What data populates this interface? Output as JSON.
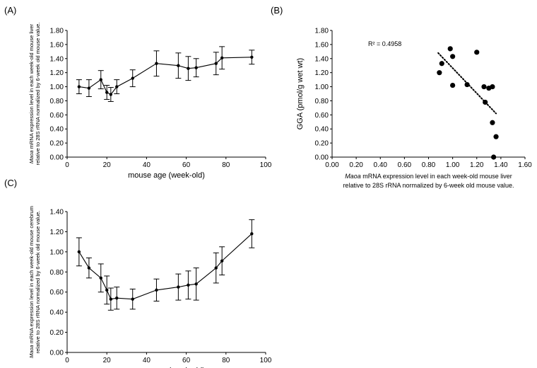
{
  "chart_data": [
    {
      "type": "line",
      "panel_label": "(A)",
      "xlabel": "mouse age (week-old)",
      "ylabel_lines": [
        "Maoa mRNA expression level in each week-old mouse liver",
        "relative to 28S rRNA normalized by 6-week old mouse value."
      ],
      "xlim": [
        0,
        100
      ],
      "ylim": [
        0,
        1.8
      ],
      "xticks": [
        0,
        20,
        40,
        60,
        80,
        100
      ],
      "xtick_labels": [
        "0",
        "20",
        "40",
        "60",
        "80",
        "100"
      ],
      "yticks": [
        0,
        0.2,
        0.4,
        0.6,
        0.8,
        1.0,
        1.2,
        1.4,
        1.6,
        1.8
      ],
      "ytick_labels": [
        "0.00",
        "0.20",
        "0.40",
        "0.60",
        "0.80",
        "1.00",
        "1.20",
        "1.40",
        "1.60",
        "1.80"
      ],
      "x": [
        6,
        11,
        17,
        20,
        22,
        25,
        33,
        45,
        56,
        61,
        65,
        75,
        78,
        93
      ],
      "y": [
        1.0,
        0.98,
        1.1,
        0.92,
        0.89,
        1.0,
        1.12,
        1.33,
        1.3,
        1.26,
        1.27,
        1.33,
        1.41,
        1.42
      ],
      "err": [
        0.1,
        0.12,
        0.13,
        0.1,
        0.1,
        0.1,
        0.12,
        0.18,
        0.18,
        0.17,
        0.13,
        0.16,
        0.16,
        0.1
      ]
    },
    {
      "type": "scatter",
      "panel_label": "(B)",
      "xlabel_lines": [
        "Maoa mRNA expression level in each week-old mouse liver",
        "relative to 28S rRNA normalized by 6-week old mouse value."
      ],
      "ylabel": "GGA (pmol/g wet wt)",
      "xlim": [
        0,
        1.6
      ],
      "ylim": [
        0,
        1.8
      ],
      "xticks": [
        0,
        0.2,
        0.4,
        0.6,
        0.8,
        1.0,
        1.2,
        1.4,
        1.6
      ],
      "xtick_labels": [
        "0.00",
        "0.20",
        "0.40",
        "0.60",
        "0.80",
        "1.00",
        "1.20",
        "1.40",
        "1.60"
      ],
      "yticks": [
        0,
        0.2,
        0.4,
        0.6,
        0.8,
        1.0,
        1.2,
        1.4,
        1.6,
        1.8
      ],
      "ytick_labels": [
        "0.00",
        "0.20",
        "0.40",
        "0.60",
        "0.80",
        "1.00",
        "1.20",
        "1.40",
        "1.60",
        "1.80"
      ],
      "x": [
        0.89,
        0.91,
        0.98,
        1.0,
        1.0,
        1.12,
        1.2,
        1.26,
        1.27,
        1.3,
        1.33,
        1.33,
        1.36,
        1.34
      ],
      "y": [
        1.2,
        1.33,
        1.54,
        1.43,
        1.02,
        1.03,
        1.49,
        1.0,
        0.78,
        0.98,
        1.0,
        0.49,
        0.29,
        0.0
      ],
      "trendline": {
        "style": "dotted",
        "x": [
          0.88,
          1.36
        ],
        "y": [
          1.48,
          0.62
        ]
      },
      "annotation": "R² = 0.4958"
    },
    {
      "type": "line",
      "panel_label": "(C)",
      "xlabel": "mouse age (week-old)",
      "ylabel_lines": [
        "Maoa mRNA expression level in each week-old mouse cerebrum",
        "relative to 28S rRNA normalized by 6-week old mouse value."
      ],
      "xlim": [
        0,
        100
      ],
      "ylim": [
        0,
        1.4
      ],
      "xticks": [
        0,
        20,
        40,
        60,
        80,
        100
      ],
      "xtick_labels": [
        "0",
        "20",
        "40",
        "60",
        "80",
        "100"
      ],
      "yticks": [
        0,
        0.2,
        0.4,
        0.6,
        0.8,
        1.0,
        1.2,
        1.4
      ],
      "ytick_labels": [
        "0.00",
        "0.20",
        "0.40",
        "0.60",
        "0.80",
        "1.00",
        "1.20",
        "1.40"
      ],
      "x": [
        6,
        11,
        17,
        20,
        22,
        25,
        33,
        45,
        56,
        61,
        65,
        75,
        78,
        93
      ],
      "y": [
        1.0,
        0.84,
        0.74,
        0.62,
        0.53,
        0.54,
        0.53,
        0.62,
        0.65,
        0.67,
        0.68,
        0.84,
        0.91,
        1.18
      ],
      "err": [
        0.14,
        0.1,
        0.14,
        0.14,
        0.11,
        0.11,
        0.1,
        0.11,
        0.13,
        0.14,
        0.16,
        0.15,
        0.14,
        0.14
      ]
    }
  ]
}
